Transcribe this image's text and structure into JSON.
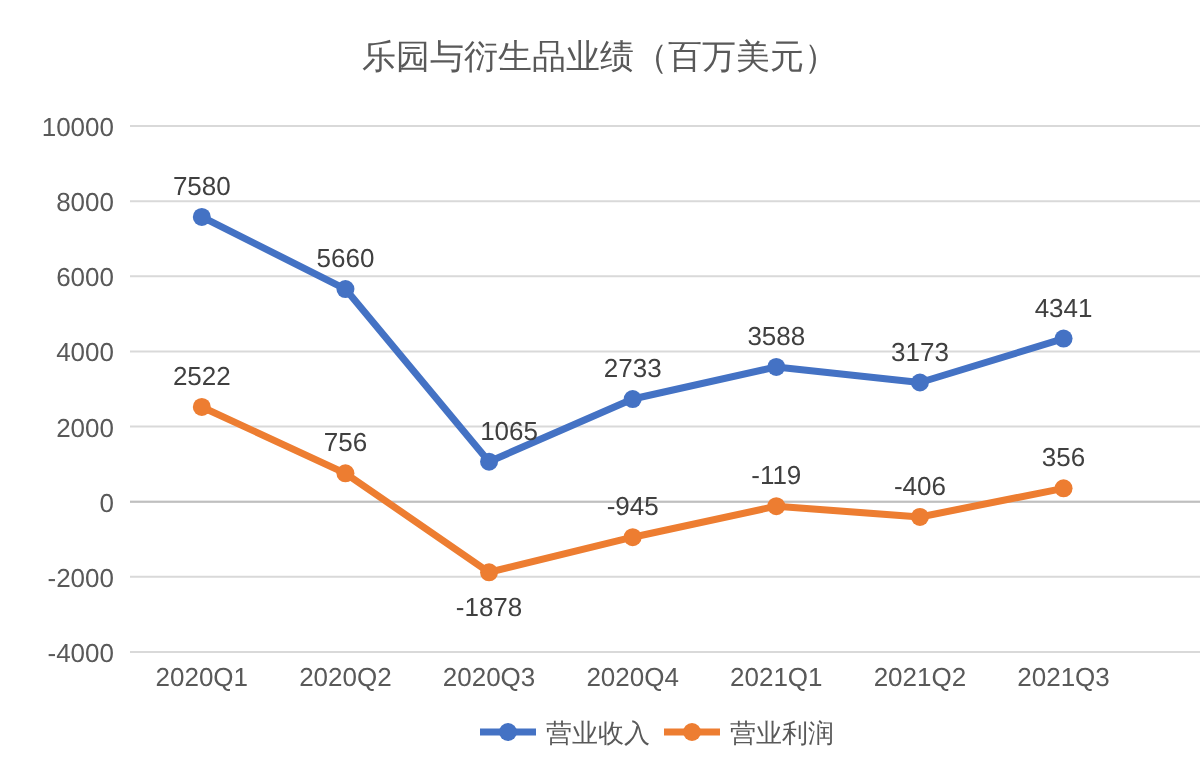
{
  "chart_data": {
    "type": "line",
    "title": "乐园与衍生品业绩（百万美元）",
    "categories": [
      "2020Q1",
      "2020Q2",
      "2020Q3",
      "2020Q4",
      "2021Q1",
      "2021Q2",
      "2021Q3"
    ],
    "series": [
      {
        "name": "营业收入",
        "color": "#4472c4",
        "values": [
          7580,
          5660,
          1065,
          2733,
          3588,
          3173,
          4341
        ]
      },
      {
        "name": "营业利润",
        "color": "#ed7d31",
        "values": [
          2522,
          756,
          -1878,
          -945,
          -119,
          -406,
          356
        ]
      }
    ],
    "ylim": [
      -4000,
      10000
    ],
    "yticks": [
      -4000,
      -2000,
      0,
      2000,
      4000,
      6000,
      8000,
      10000
    ],
    "grid": "y",
    "legend": "bottom",
    "marker": "circle",
    "data_labels": true
  }
}
